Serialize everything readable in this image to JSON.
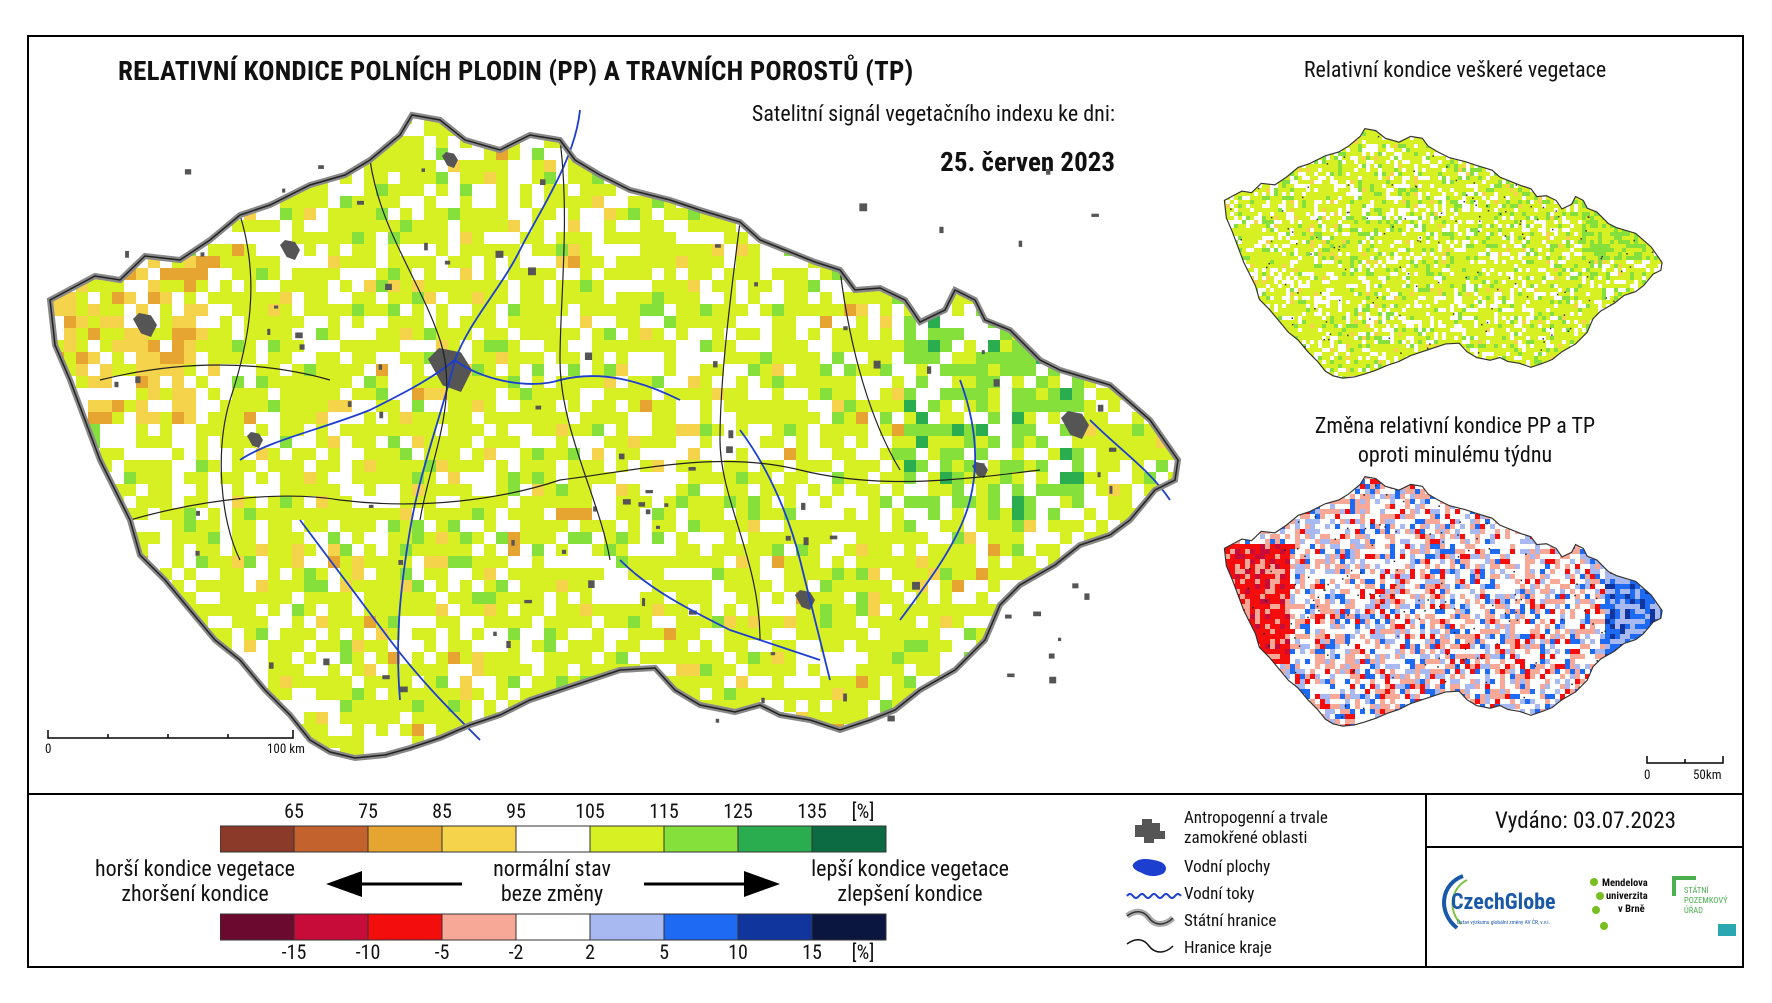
{
  "header": {
    "title": "RELATIVNÍ KONDICE POLNÍCH PLODIN (PP) A TRAVNÍCH POROSTŮ (TP)",
    "subtitle": "Satelitní signál vegetačního indexu ke dni:",
    "date": "25. červen 2023"
  },
  "insets": {
    "all_vegetation_title": "Relativní kondice veškeré vegetace",
    "change_title_line1": "Změna relativní kondice PP a TP",
    "change_title_line2": "oproti minulému týdnu"
  },
  "scalebars": {
    "main_start": "0",
    "main_end": "100 km",
    "inset_start": "0",
    "inset_end": "50km"
  },
  "legend": {
    "condition_scale": {
      "labels": [
        "65",
        "75",
        "85",
        "95",
        "105",
        "115",
        "125",
        "135"
      ],
      "unit": "[%]",
      "colors": [
        "#8b3a2a",
        "#c4622d",
        "#e6a531",
        "#f5d44c",
        "#ffffff",
        "#d7f023",
        "#86e03c",
        "#29ad4e",
        "#0c6b42"
      ]
    },
    "change_scale": {
      "labels": [
        "-15",
        "-10",
        "-5",
        "-2",
        "2",
        "5",
        "10",
        "15"
      ],
      "unit": "[%]",
      "colors": [
        "#6b0a2e",
        "#c70c3a",
        "#f40d0d",
        "#f7a896",
        "#ffffff",
        "#a8b8f0",
        "#1f6af2",
        "#10359c",
        "#0a1640"
      ]
    },
    "worse_line1": "horší kondice vegetace",
    "worse_line2": "zhoršení kondice",
    "normal_line1": "normální stav",
    "normal_line2": "beze změny",
    "better_line1": "lepší kondice vegetace",
    "better_line2": "zlepšení kondice"
  },
  "symbols": {
    "urban_line1": "Antropogenní a trvale",
    "urban_line2": "zamokřené oblasti",
    "water_bodies": "Vodní plochy",
    "rivers": "Vodní toky",
    "state_border": "Státní hranice",
    "region_border": "Hranice kraje"
  },
  "footer": {
    "issued": "Vydáno: 03.07.2023",
    "logo_czechglobe": "CzechGlobe",
    "logo_czechglobe_sub": "Ústav výzkumu globální změny AV ČR, v.v.i.",
    "logo_mendelu": [
      "Mendelova",
      "univerzita",
      "v Brně"
    ],
    "logo_spu": [
      "STÁTNÍ",
      "POZEMKOVÝ",
      "ÚŘAD"
    ]
  },
  "map_colors": {
    "urban": "#555555",
    "river": "#1d3fd0",
    "border": "#888888",
    "region": "#222222"
  }
}
